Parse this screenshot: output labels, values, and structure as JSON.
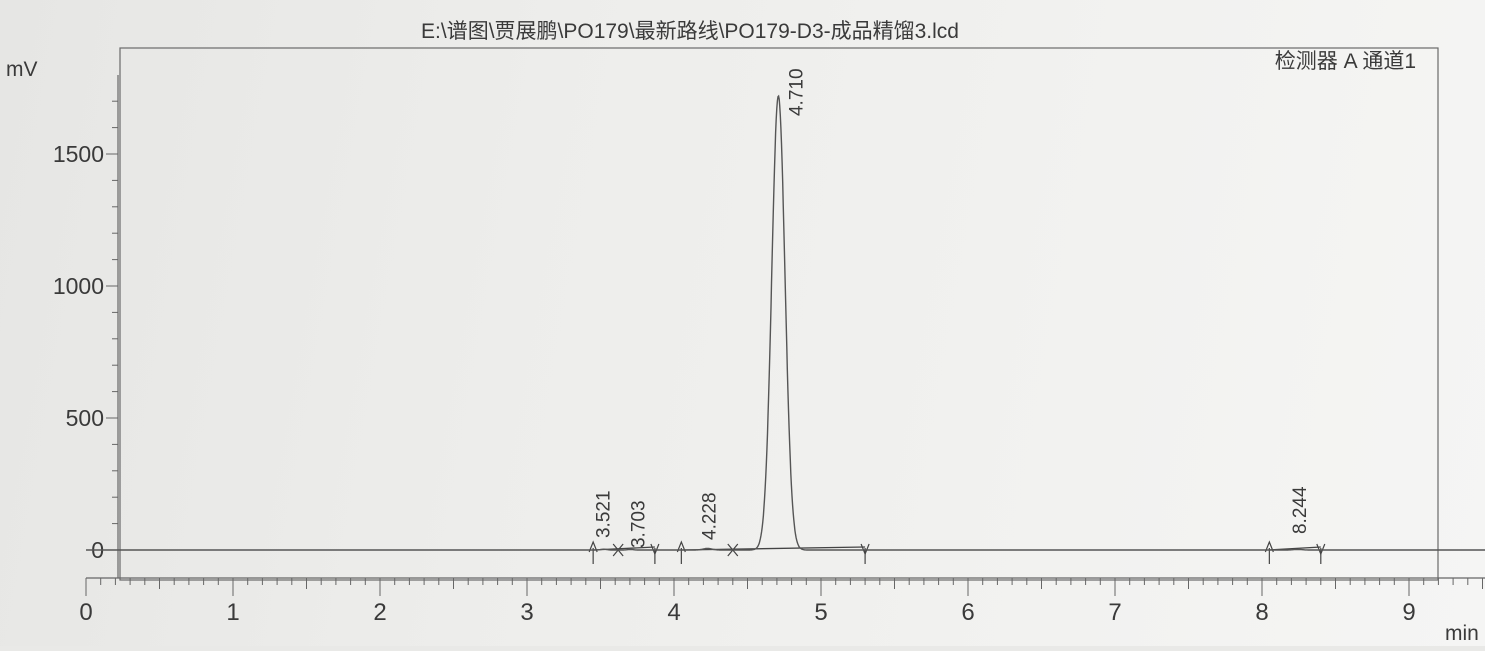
{
  "header": {
    "file_path": "E:\\谱图\\贾展鹏\\PO179\\最新路线\\PO179-D3-成品精馏3.lcd",
    "detector_label": "检测器 A 通道1"
  },
  "chart_data": {
    "type": "line",
    "title": "E:\\谱图\\贾展鹏\\PO179\\最新路线\\PO179-D3-成品精馏3.lcd",
    "ylabel": "mV",
    "xlabel": "min",
    "xlim": [
      0,
      9.5
    ],
    "ylim": [
      -100,
      1800
    ],
    "x_ticks": [
      0,
      1,
      2,
      3,
      4,
      5,
      6,
      7,
      8,
      9
    ],
    "y_ticks": [
      0,
      500,
      1000,
      1500
    ],
    "grid": false,
    "legend": "none",
    "series": [
      {
        "peaks": [
          {
            "rt": 3.521,
            "height": 3,
            "width": 0.02
          },
          {
            "rt": 3.703,
            "height": 2,
            "width": 0.02
          },
          {
            "rt": 4.228,
            "height": 6,
            "width": 0.03
          },
          {
            "rt": 4.71,
            "height": 1720,
            "width": 0.045
          },
          {
            "rt": 8.244,
            "height": 2,
            "width": 0.03
          }
        ]
      }
    ],
    "peak_labels": [
      "3.521",
      "3.703",
      "4.228",
      "4.710",
      "8.244"
    ],
    "integration_markers": [
      {
        "t": 3.45,
        "kind": "start"
      },
      {
        "t": 3.62,
        "kind": "cross"
      },
      {
        "t": 3.87,
        "kind": "end"
      },
      {
        "t": 4.05,
        "kind": "start"
      },
      {
        "t": 4.4,
        "kind": "cross"
      },
      {
        "t": 5.3,
        "kind": "end"
      },
      {
        "t": 8.05,
        "kind": "start"
      },
      {
        "t": 8.4,
        "kind": "end"
      }
    ],
    "line_color": "#555555"
  }
}
